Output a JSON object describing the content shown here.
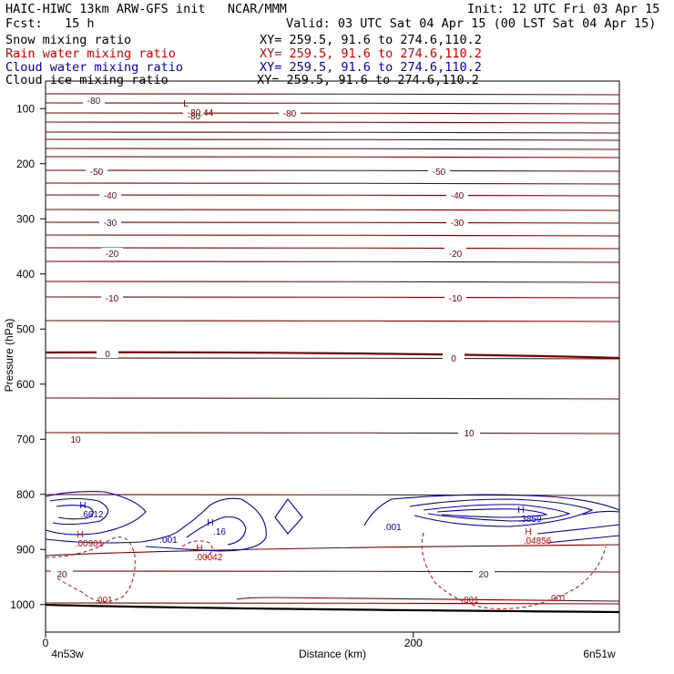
{
  "header": {
    "title": "HAIC-HIWC 13km ARW-GFS init   NCAR/MMM",
    "init": "Init: 12 UTC Fri 03 Apr 15",
    "fcst": "Fcst:   15 h",
    "valid": "Valid: 03 UTC Sat 04 Apr 15 (00 LST Sat 04 Apr 15)"
  },
  "fields": [
    {
      "name": "Snow mixing ratio",
      "xy": "XY= 259.5, 91.6 to 274.6,110.2",
      "color": "#000000"
    },
    {
      "name": "Rain water mixing ratio",
      "xy": "XY= 259.5, 91.6 to 274.6,110.2",
      "color": "#e00000"
    },
    {
      "name": "Cloud water mixing ratio",
      "xy": "XY= 259.5, 91.6 to 274.6,110.2",
      "color": "#0000cc"
    },
    {
      "name": "Cloud ice mixing ratio",
      "xy": "XY= 259.5, 91.6 to 274.6,110.2",
      "color": "#000000"
    }
  ],
  "chart_data": {
    "type": "contour",
    "xlabel": "Distance (km)",
    "ylabel": "Pressure (hPa)",
    "x_ticks": [
      0,
      200
    ],
    "y_ticks": [
      100,
      200,
      300,
      400,
      500,
      600,
      700,
      800,
      900,
      1000
    ],
    "xlim": [
      0,
      312
    ],
    "ylim": [
      50,
      1050
    ],
    "x_endpoints": [
      "4n53w",
      "6n51w"
    ],
    "temperature_color": "#800000",
    "temperature_labels": [
      "-80",
      "-80",
      "-80",
      "-50",
      "-50",
      "-40",
      "-40",
      "-30",
      "-30",
      "-20",
      "-20",
      "-10",
      "-10",
      "0",
      "0",
      "10",
      "10",
      "20",
      "20"
    ],
    "temperature_levels": [
      -80,
      -50,
      -40,
      -30,
      -20,
      -10,
      0,
      10,
      20
    ],
    "extrema_labels": [
      {
        "mark": "L",
        "value": "-80.44",
        "color": "#800000"
      },
      {
        "mark": "H",
        "value": ".6612",
        "color": "#0000cc"
      },
      {
        "mark": "H",
        "value": ".16",
        "color": "#0000cc"
      },
      {
        "mark": "H",
        "value": ".3859",
        "color": "#0000cc"
      },
      {
        "mark": "H",
        "value": ".00901",
        "color": "#e00000"
      },
      {
        "mark": "H",
        "value": ".00042",
        "color": "#e00000"
      },
      {
        "mark": "H",
        "value": ".04856",
        "color": "#e00000"
      }
    ],
    "cloud_water_labels": [
      ".001",
      ".001"
    ],
    "rain_labels": [
      ".001",
      ".001",
      ".001"
    ]
  }
}
